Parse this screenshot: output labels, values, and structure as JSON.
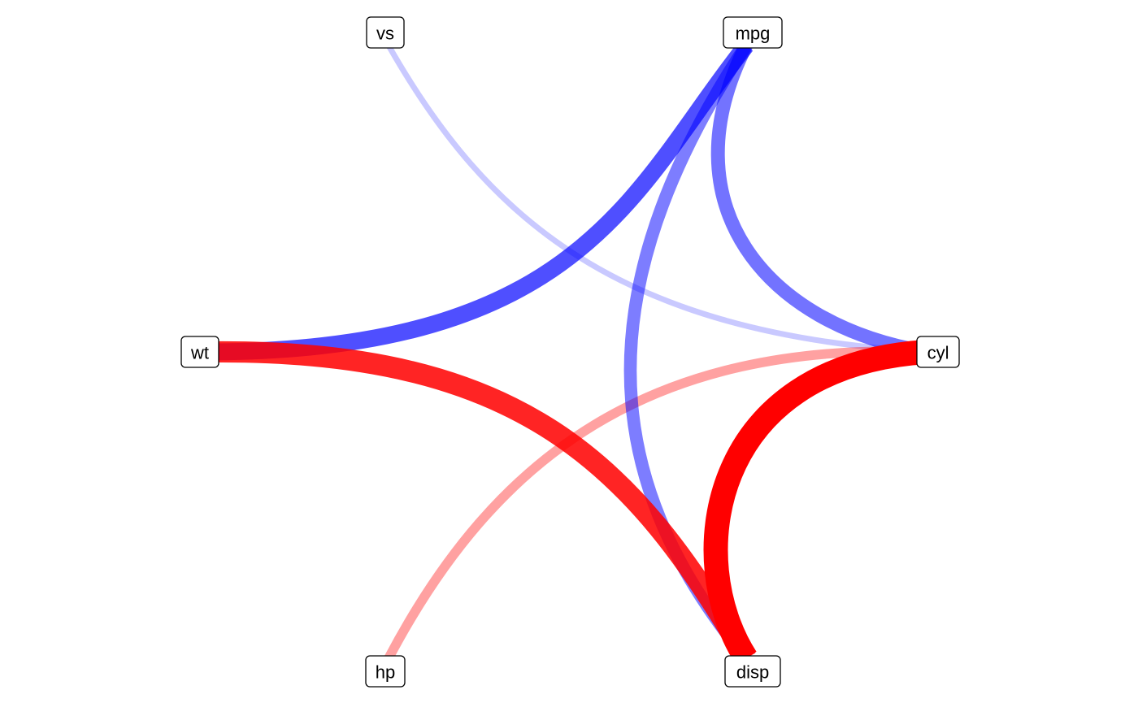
{
  "diagram": {
    "nodes": [
      {
        "id": "vs",
        "label": "vs"
      },
      {
        "id": "mpg",
        "label": "mpg"
      },
      {
        "id": "wt",
        "label": "wt"
      },
      {
        "id": "cyl",
        "label": "cyl"
      },
      {
        "id": "hp",
        "label": "hp"
      },
      {
        "id": "disp",
        "label": "disp"
      }
    ],
    "edges": [
      {
        "from": "vs",
        "to": "cyl",
        "sign": "negative",
        "color": "#0000ff",
        "strength": 0.12
      },
      {
        "from": "hp",
        "to": "cyl",
        "sign": "positive",
        "color": "#ff0000",
        "strength": 0.3
      },
      {
        "from": "mpg",
        "to": "disp",
        "sign": "negative",
        "color": "#0000ff",
        "strength": 0.45
      },
      {
        "from": "mpg",
        "to": "cyl",
        "sign": "negative",
        "color": "#0000ff",
        "strength": 0.5
      },
      {
        "from": "wt",
        "to": "mpg",
        "sign": "negative",
        "color": "#0000ff",
        "strength": 0.65
      },
      {
        "from": "wt",
        "to": "disp",
        "sign": "positive",
        "color": "#ff0000",
        "strength": 0.85
      },
      {
        "from": "cyl",
        "to": "disp",
        "sign": "positive",
        "color": "#ff0000",
        "strength": 1.0
      }
    ]
  }
}
